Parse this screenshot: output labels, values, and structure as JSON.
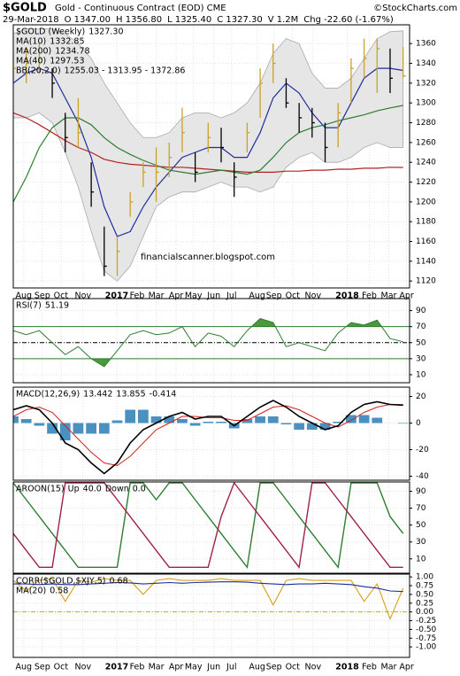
{
  "header": {
    "symbol": "$GOLD",
    "description": "Gold - Continuous Contract (EOD) CME",
    "source": "©StockCharts.com",
    "date": "29-Mar-2018",
    "quote": [
      "O 1347.00",
      "H 1356.80",
      "L 1325.40",
      "C 1327.30",
      "V 1.2M",
      "Chg -22.60 (-1.67%)"
    ]
  },
  "chart_data": {
    "type": "stock",
    "grid": true,
    "x": [
      0,
      3,
      6,
      9,
      12,
      15,
      18,
      21,
      24,
      27,
      30,
      33,
      36,
      39,
      42,
      45,
      48,
      51,
      54,
      57,
      60,
      63,
      66,
      69,
      72,
      75,
      78,
      81,
      84,
      87,
      90
    ],
    "xlim": [
      0,
      91.5
    ],
    "xticks": [
      {
        "value": 2.4,
        "label": "Aug"
      },
      {
        "value": 6.7,
        "label": "Sep"
      },
      {
        "value": 11,
        "label": "Oct"
      },
      {
        "value": 16.1,
        "label": "Nov"
      },
      {
        "value": 23.9,
        "label": "2017"
      },
      {
        "value": 28.6,
        "label": "Feb"
      },
      {
        "value": 33,
        "label": "Mar"
      },
      {
        "value": 37.6,
        "label": "Apr"
      },
      {
        "value": 41.6,
        "label": "May"
      },
      {
        "value": 46.3,
        "label": "Jun"
      },
      {
        "value": 50.4,
        "label": "Jul"
      },
      {
        "value": 56.3,
        "label": "Aug"
      },
      {
        "value": 60.2,
        "label": "Sep"
      },
      {
        "value": 64.5,
        "label": "Oct"
      },
      {
        "value": 69.2,
        "label": "Nov"
      },
      {
        "value": 77.1,
        "label": "2018"
      },
      {
        "value": 82.2,
        "label": "Feb"
      },
      {
        "value": 86.7,
        "label": "Mar"
      },
      {
        "value": 90.8,
        "label": "Apr"
      }
    ],
    "panels": [
      {
        "type": "ohlc",
        "ylim": [
          1113,
          1379
        ],
        "yticks": [
          1120,
          1140,
          1160,
          1180,
          1200,
          1220,
          1240,
          1260,
          1280,
          1300,
          1320,
          1340,
          1360
        ],
        "watermark": "financialscanner.blogspot.com",
        "price": {
          "name": "$GOLD (Weekly)",
          "legend_value": "1327.30",
          "up_color": "#c9a227",
          "down_color": "#000000",
          "close": [
            1335,
            1340,
            1345,
            1320,
            1265,
            1270,
            1210,
            1135,
            1150,
            1200,
            1230,
            1230,
            1245,
            1270,
            1230,
            1265,
            1255,
            1225,
            1270,
            1320,
            1340,
            1300,
            1285,
            1280,
            1255,
            1290,
            1335,
            1345,
            1355,
            1325,
            1327.3
          ],
          "high": [
            1350,
            1355,
            1360,
            1335,
            1290,
            1305,
            1240,
            1175,
            1165,
            1210,
            1240,
            1255,
            1260,
            1295,
            1250,
            1280,
            1275,
            1240,
            1280,
            1335,
            1360,
            1325,
            1300,
            1295,
            1280,
            1300,
            1345,
            1365,
            1365,
            1355,
            1356.8
          ],
          "low": [
            1320,
            1320,
            1330,
            1305,
            1250,
            1255,
            1195,
            1125,
            1125,
            1185,
            1215,
            1200,
            1225,
            1250,
            1220,
            1250,
            1240,
            1205,
            1250,
            1285,
            1320,
            1295,
            1270,
            1265,
            1240,
            1255,
            1300,
            1325,
            1310,
            1310,
            1325.4
          ]
        },
        "series": [
          {
            "name": "MA(10)",
            "legend_value": "1332.85",
            "color": "#1f2d9e",
            "values": [
              1320,
              1330,
              1335,
              1330,
              1305,
              1280,
              1245,
              1195,
              1165,
              1170,
              1195,
              1215,
              1230,
              1245,
              1250,
              1255,
              1255,
              1245,
              1245,
              1270,
              1305,
              1320,
              1310,
              1290,
              1275,
              1275,
              1300,
              1325,
              1335,
              1335,
              1332.85
            ]
          },
          {
            "name": "MA(200)",
            "legend_value": "1234.78",
            "color": "#b22222",
            "values": [
              1290,
              1285,
              1278,
              1270,
              1262,
              1255,
              1250,
              1243,
              1240,
              1238,
              1237,
              1236,
              1235,
              1235,
              1234,
              1233,
              1232,
              1231,
              1230,
              1230,
              1230,
              1231,
              1231,
              1232,
              1232,
              1233,
              1233,
              1234,
              1234,
              1235,
              1234.78
            ]
          },
          {
            "name": "MA(40)",
            "legend_value": "1297.53",
            "color": "#2e7d32",
            "values": [
              1200,
              1225,
              1255,
              1275,
              1285,
              1285,
              1278,
              1265,
              1255,
              1248,
              1242,
              1237,
              1232,
              1230,
              1228,
              1230,
              1232,
              1230,
              1228,
              1232,
              1245,
              1260,
              1270,
              1275,
              1278,
              1282,
              1285,
              1288,
              1292,
              1295,
              1297.53
            ]
          }
        ],
        "bands": [
          {
            "name": "BB(20,2.0)",
            "legend_value": "1255.03 - 1313.95 - 1372.86",
            "color": "#aaaaaa",
            "fill": "#e6e6e6",
            "upper": [
              1370,
              1375,
              1375,
              1375,
              1370,
              1360,
              1345,
              1320,
              1300,
              1280,
              1265,
              1265,
              1270,
              1285,
              1290,
              1290,
              1285,
              1290,
              1300,
              1320,
              1350,
              1365,
              1360,
              1330,
              1315,
              1315,
              1325,
              1345,
              1365,
              1372,
              1372.86
            ],
            "lower": [
              1285,
              1285,
              1290,
              1280,
              1250,
              1215,
              1170,
              1130,
              1120,
              1135,
              1165,
              1195,
              1205,
              1210,
              1210,
              1215,
              1220,
              1215,
              1215,
              1210,
              1215,
              1235,
              1245,
              1250,
              1240,
              1240,
              1245,
              1255,
              1260,
              1255,
              1255.03
            ]
          }
        ]
      },
      {
        "type": "rsi",
        "ylim": [
          0,
          105
        ],
        "yticks": [
          10,
          30,
          50,
          70,
          90
        ],
        "overbought": 70,
        "midline": 50,
        "oversold": 30,
        "fill_color": "#4a9a3a",
        "series": [
          {
            "name": "RSI(7)",
            "legend_value": "51.19",
            "color": "#2e7d32",
            "values": [
              65,
              60,
              65,
              50,
              35,
              45,
              30,
              20,
              40,
              60,
              65,
              60,
              62,
              70,
              45,
              62,
              58,
              45,
              65,
              80,
              75,
              45,
              50,
              45,
              40,
              62,
              75,
              72,
              78,
              55,
              51.19
            ]
          }
        ]
      },
      {
        "type": "macd",
        "label": "MACD(12,26,9)",
        "ylim": [
          -43,
          27
        ],
        "yticks": [
          -40,
          -20,
          0,
          20
        ],
        "macd": {
          "legend_value": "13.442",
          "color": "#000000",
          "values": [
            10,
            13,
            10,
            0,
            -15,
            -20,
            -30,
            -38,
            -30,
            -15,
            -5,
            0,
            5,
            8,
            3,
            5,
            5,
            -2,
            5,
            12,
            17,
            12,
            5,
            0,
            -5,
            -2,
            8,
            14,
            16,
            14,
            13.442
          ]
        },
        "signal": {
          "legend_value": "13.855",
          "color": "#d62020",
          "values": [
            5,
            10,
            12,
            8,
            -2,
            -12,
            -22,
            -30,
            -32,
            -25,
            -15,
            -5,
            0,
            5,
            5,
            4,
            4,
            2,
            2,
            7,
            12,
            13,
            10,
            5,
            0,
            -3,
            2,
            8,
            12,
            14,
            13.855
          ]
        },
        "histogram": {
          "legend_value": "-0.414",
          "color": "#4a90c0",
          "values": [
            5,
            3,
            -2,
            -8,
            -13,
            -8,
            -8,
            -8,
            2,
            10,
            10,
            5,
            5,
            3,
            -2,
            1,
            1,
            -4,
            3,
            5,
            5,
            -1,
            -5,
            -5,
            -5,
            1,
            6,
            6,
            4,
            0,
            -0.414
          ]
        }
      },
      {
        "type": "aroon",
        "label": "AROON(15)",
        "ylim": [
          -7,
          101
        ],
        "yticks": [
          10,
          30,
          50,
          70,
          90
        ],
        "series": [
          {
            "name": "Up",
            "legend_value": "40.0",
            "color": "#2e7d32",
            "values": [
              100,
              80,
              60,
              40,
              20,
              0,
              0,
              0,
              0,
              100,
              100,
              80,
              100,
              100,
              80,
              60,
              40,
              20,
              0,
              100,
              100,
              80,
              60,
              40,
              20,
              0,
              100,
              100,
              100,
              60,
              40
            ]
          },
          {
            "name": "Down",
            "legend_value": "0.0",
            "color": "#a0204a",
            "values": [
              40,
              20,
              0,
              0,
              100,
              100,
              100,
              100,
              80,
              60,
              40,
              20,
              0,
              0,
              0,
              0,
              60,
              100,
              80,
              60,
              40,
              20,
              0,
              100,
              100,
              80,
              60,
              40,
              20,
              0,
              0
            ]
          }
        ]
      },
      {
        "type": "corr",
        "ylim": [
          -1.3,
          1.08
        ],
        "zero_line": 0,
        "zero_color": "#d4a017",
        "yticks": [
          {
            "value": 1,
            "label": "1.00"
          },
          {
            "value": 0.75,
            "label": "0.75"
          },
          {
            "value": 0.5,
            "label": "0.50"
          },
          {
            "value": 0.25,
            "label": "0.25"
          },
          {
            "value": 0,
            "label": "0.00"
          },
          {
            "value": -0.25,
            "label": "-0.25"
          },
          {
            "value": -0.5,
            "label": "-0.50"
          },
          {
            "value": -0.75,
            "label": "-0.75"
          },
          {
            "value": -1,
            "label": "-1.00"
          }
        ],
        "series": [
          {
            "name": "CORR($GOLD,$XJY,5)",
            "legend_value": "0.68",
            "color": "#d4a017",
            "values": [
              0.9,
              0.6,
              0.9,
              0.95,
              0.3,
              0.9,
              0.85,
              0.95,
              0.9,
              0.9,
              0.5,
              0.9,
              0.95,
              0.9,
              0.9,
              0.9,
              0.95,
              0.9,
              0.9,
              0.9,
              0.2,
              0.9,
              0.95,
              0.9,
              0.9,
              0.9,
              0.9,
              0.3,
              0.8,
              -0.2,
              0.68
            ]
          },
          {
            "name": "MA(20)",
            "legend_value": "0.58",
            "color": "#1f2d9e",
            "values": [
              0.8,
              0.8,
              0.78,
              0.8,
              0.78,
              0.78,
              0.8,
              0.82,
              0.84,
              0.83,
              0.8,
              0.82,
              0.84,
              0.82,
              0.84,
              0.85,
              0.86,
              0.86,
              0.85,
              0.82,
              0.8,
              0.78,
              0.8,
              0.8,
              0.82,
              0.8,
              0.78,
              0.72,
              0.68,
              0.6,
              0.58
            ]
          }
        ]
      }
    ]
  }
}
